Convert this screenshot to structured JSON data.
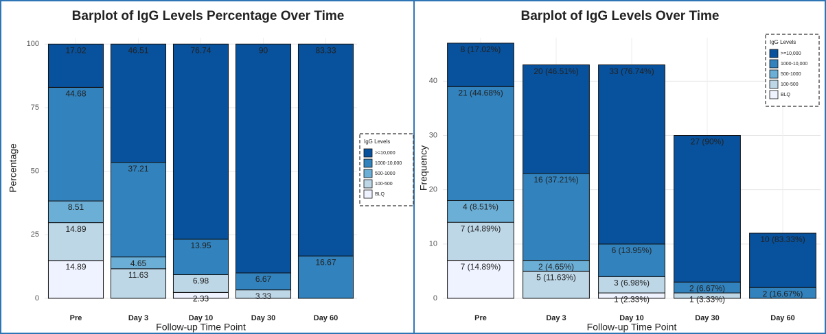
{
  "chart_data": [
    {
      "type": "stacked-bar",
      "title": "Barplot of IgG Levels Percentage Over Time",
      "x_label": "Follow-up Time Point",
      "y_label": "Percentage",
      "categories": [
        "Pre",
        "Day 3",
        "Day 10",
        "Day 30",
        "Day 60"
      ],
      "legend_title": "IgG Levels",
      "legend_position": "right",
      "grid": true,
      "ylim": [
        0,
        102.5
      ],
      "yticks": [
        0,
        25,
        50,
        75,
        100
      ],
      "series": [
        {
          "name": ">=10,000",
          "color": "#08519c",
          "values": [
            17.02,
            46.51,
            76.74,
            90,
            83.33
          ]
        },
        {
          "name": "1000-10,000",
          "color": "#3182bd",
          "values": [
            44.68,
            37.21,
            13.95,
            6.67,
            16.67
          ]
        },
        {
          "name": "500-1000",
          "color": "#6baed6",
          "values": [
            8.51,
            4.65,
            null,
            null,
            null
          ]
        },
        {
          "name": "100-500",
          "color": "#bdd7e7",
          "values": [
            14.89,
            11.63,
            6.98,
            3.33,
            null
          ]
        },
        {
          "name": "BLQ",
          "color": "#eff3ff",
          "values": [
            14.89,
            null,
            2.33,
            null,
            null
          ]
        }
      ]
    },
    {
      "type": "stacked-bar",
      "title": "Barplot of IgG Levels Over Time",
      "x_label": "Follow-up Time Point",
      "y_label": "Frequency",
      "categories": [
        "Pre",
        "Day 3",
        "Day 10",
        "Day 30",
        "Day 60"
      ],
      "legend_title": "IgG Levels",
      "legend_position": "top-right",
      "grid": true,
      "ylim": [
        0,
        48
      ],
      "yticks": [
        0,
        10,
        20,
        30,
        40
      ],
      "series": [
        {
          "name": ">=10,000",
          "color": "#08519c",
          "values": [
            8,
            20,
            33,
            27,
            10
          ],
          "value_labels": [
            "8 (17.02%)",
            "20 (46.51%)",
            "33 (76.74%)",
            "27 (90%)",
            "10 (83.33%)"
          ]
        },
        {
          "name": "1000-10,000",
          "color": "#3182bd",
          "values": [
            21,
            16,
            6,
            2,
            2
          ],
          "value_labels": [
            "21 (44.68%)",
            "16 (37.21%)",
            "6 (13.95%)",
            "2 (6.67%)",
            "2 (16.67%)"
          ]
        },
        {
          "name": "500-1000",
          "color": "#6baed6",
          "values": [
            4,
            2,
            null,
            null,
            null
          ],
          "value_labels": [
            "4 (8.51%)",
            "2 (4.65%)",
            null,
            null,
            null
          ]
        },
        {
          "name": "100-500",
          "color": "#bdd7e7",
          "values": [
            7,
            5,
            3,
            1,
            null
          ],
          "value_labels": [
            "7 (14.89%)",
            "5 (11.63%)",
            "3 (6.98%)",
            "1 (3.33%)",
            null
          ]
        },
        {
          "name": "BLQ",
          "color": "#eff3ff",
          "values": [
            7,
            null,
            1,
            null,
            null
          ],
          "value_labels": [
            "7 (14.89%)",
            null,
            "1 (2.33%)",
            null,
            null
          ]
        }
      ]
    }
  ]
}
